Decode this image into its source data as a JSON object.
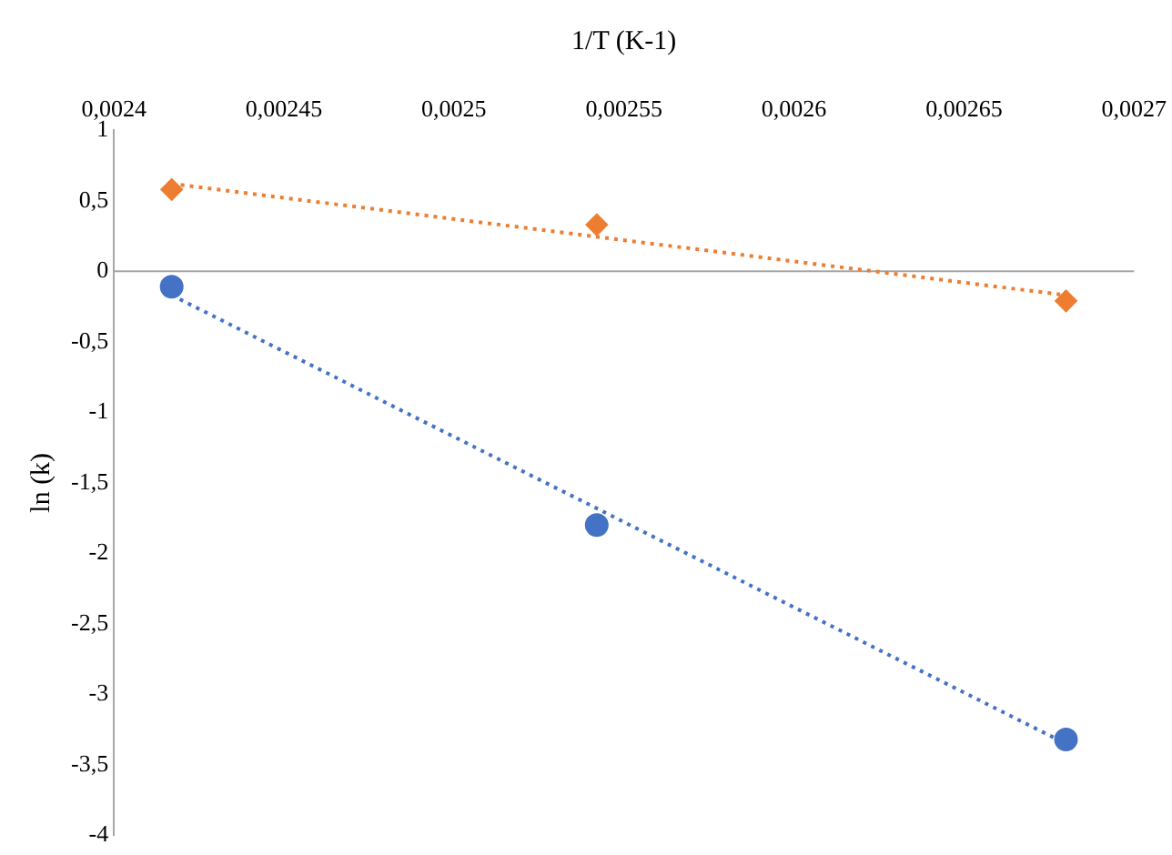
{
  "chart_data": {
    "type": "scatter",
    "xlabel": "1/T (K-1)",
    "ylabel": "ln (k)",
    "xlim": [
      0.0024,
      0.0027
    ],
    "xticks": [
      {
        "value": 0.0024,
        "label": "0,0024"
      },
      {
        "value": 0.00245,
        "label": "0,00245"
      },
      {
        "value": 0.0025,
        "label": "0,0025"
      },
      {
        "value": 0.00255,
        "label": "0,00255"
      },
      {
        "value": 0.0026,
        "label": "0,0026"
      },
      {
        "value": 0.00265,
        "label": "0,00265"
      },
      {
        "value": 0.0027,
        "label": "0,0027"
      }
    ],
    "ylim": [
      -4,
      1
    ],
    "yticks": [
      1,
      {
        "value": 0.5,
        "label": "0,5"
      },
      0,
      {
        "value": -0.5,
        "label": "-0,5"
      },
      -1,
      {
        "value": -1.5,
        "label": "-1,5"
      },
      -2,
      {
        "value": -2.5,
        "label": "-2,5"
      },
      -3,
      {
        "value": -3.5,
        "label": "-3,5"
      },
      -4
    ],
    "grid": false,
    "legend": false,
    "ref_lines": [
      {
        "axis": "y",
        "value": 0,
        "color": "#a6a6a6"
      }
    ],
    "series": [
      {
        "type": "scatter",
        "color": "#4472c4",
        "marker": "circle",
        "x": [
          0.002417,
          0.002542,
          0.00268
        ],
        "values": [
          -0.11,
          -1.8,
          -3.32
        ]
      },
      {
        "type": "scatter",
        "color": "#ed7d31",
        "marker": "diamond",
        "x": [
          0.002417,
          0.002542,
          0.00268
        ],
        "values": [
          0.58,
          0.33,
          -0.21
        ]
      },
      {
        "type": "line",
        "color": "#4472c4",
        "line_style": "dotted",
        "marker": "none",
        "x": [
          0.002417,
          0.00268
        ],
        "values": [
          -0.17,
          -3.35
        ]
      },
      {
        "type": "line",
        "color": "#ed7d31",
        "line_style": "dotted",
        "marker": "none",
        "x": [
          0.002417,
          0.00268
        ],
        "values": [
          0.62,
          -0.17
        ]
      }
    ]
  }
}
